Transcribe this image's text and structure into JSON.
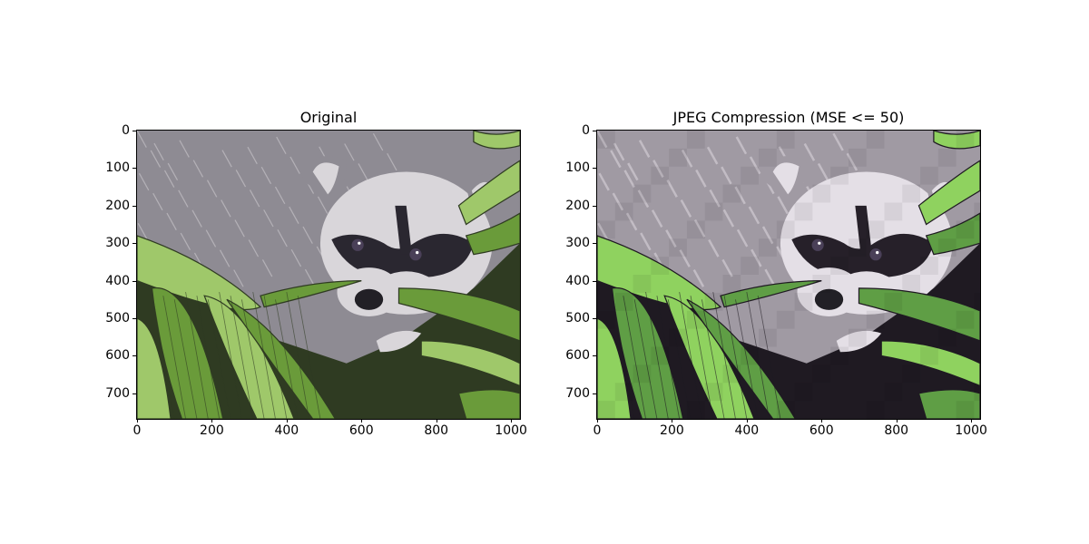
{
  "chart_data": [
    {
      "type": "image",
      "title": "Original",
      "xlim": [
        0,
        1024
      ],
      "ylim": [
        768,
        0
      ],
      "xticks": [
        0,
        200,
        400,
        600,
        800,
        1000
      ],
      "yticks": [
        0,
        100,
        200,
        300,
        400,
        500,
        600,
        700
      ],
      "image_subject": "raccoon-face-among-green-palm-leaves",
      "colors": {
        "fur": "#8e8b93",
        "fur_light": "#d9d6da",
        "mask": "#2a2730",
        "leaf": "#6a9b3a",
        "leaf_light": "#9fc86a",
        "shadow": "#2f3b22"
      }
    },
    {
      "type": "image",
      "title": "JPEG Compression (MSE <= 50)",
      "xlim": [
        0,
        1024
      ],
      "ylim": [
        768,
        0
      ],
      "xticks": [
        0,
        200,
        400,
        600,
        800,
        1000
      ],
      "yticks": [
        0,
        100,
        200,
        300,
        400,
        500,
        600,
        700
      ],
      "image_subject": "posterized-raccoon-face-among-green-palm-leaves",
      "colors": {
        "fur": "#a09aa3",
        "fur_light": "#e4dfe6",
        "mask": "#262029",
        "leaf": "#5f9e45",
        "leaf_light": "#8fd25f",
        "shadow": "#1f1a22"
      }
    }
  ]
}
